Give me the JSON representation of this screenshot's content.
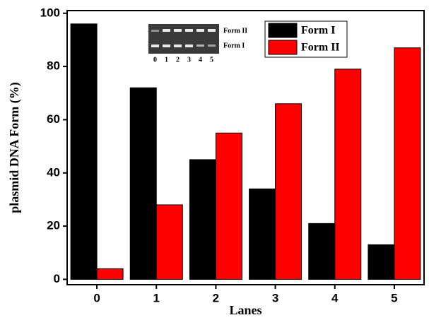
{
  "chart_data": {
    "type": "bar",
    "x_label": "Lanes",
    "y_label": "plasmid DNA Form (%)",
    "categories": [
      "0",
      "1",
      "2",
      "3",
      "4",
      "5"
    ],
    "series": [
      {
        "name": "Form I",
        "color": "#000000",
        "values": [
          96,
          72,
          45,
          34,
          21,
          13
        ]
      },
      {
        "name": "Form II",
        "color": "#ff0000",
        "values": [
          4,
          28,
          55,
          66,
          79,
          87
        ]
      }
    ],
    "ylim": [
      -2,
      101
    ],
    "yticks": [
      0,
      20,
      40,
      60,
      80,
      100
    ],
    "legend": "upper-right",
    "inset": {
      "upper_band_label": "Form II",
      "lower_band_label": "Form I",
      "lanes": [
        "0",
        "1",
        "2",
        "3",
        "4",
        "5"
      ]
    }
  }
}
